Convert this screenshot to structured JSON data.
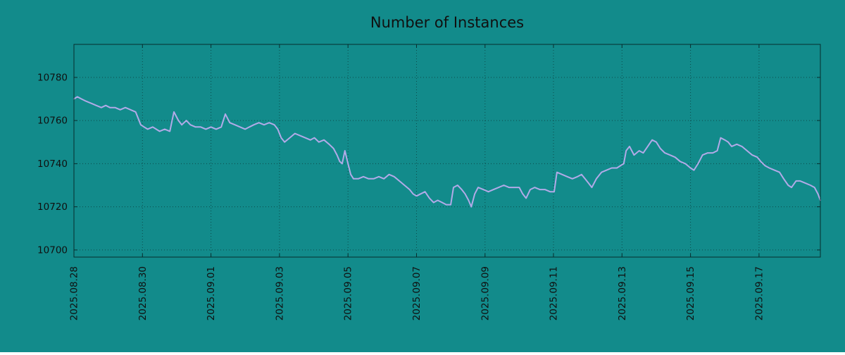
{
  "colors": {
    "background": "#128b8b",
    "line": "#b2aae8",
    "grid": "#0c4a4a",
    "border": "#072e2e",
    "text": "#101010"
  },
  "chart_data": {
    "type": "line",
    "title": "Number of Instances",
    "legend": "none",
    "grid": "dotted",
    "x_axis": {
      "range_days": [
        0,
        21.79
      ],
      "ticks": [
        {
          "label": "2025.08.28",
          "day": 0
        },
        {
          "label": "2025.08.30",
          "day": 2
        },
        {
          "label": "2025.09.01",
          "day": 4
        },
        {
          "label": "2025.09.03",
          "day": 6
        },
        {
          "label": "2025.09.05",
          "day": 8
        },
        {
          "label": "2025.09.07",
          "day": 10
        },
        {
          "label": "2025.09.09",
          "day": 12
        },
        {
          "label": "2025.09.11",
          "day": 14
        },
        {
          "label": "2025.09.13",
          "day": 16
        },
        {
          "label": "2025.09.15",
          "day": 18
        },
        {
          "label": "2025.09.17",
          "day": 20
        }
      ]
    },
    "y_axis": {
      "range": [
        10696.7,
        10795.3
      ],
      "ticks": [
        10700,
        10720,
        10740,
        10760,
        10780
      ]
    },
    "series": [
      {
        "name": "instances",
        "color": "#b2aae8",
        "points": [
          [
            0,
            10770
          ],
          [
            0.1,
            10771
          ],
          [
            0.22,
            10770
          ],
          [
            0.35,
            10769
          ],
          [
            0.5,
            10768
          ],
          [
            0.65,
            10767
          ],
          [
            0.8,
            10766
          ],
          [
            0.93,
            10767
          ],
          [
            1.05,
            10766
          ],
          [
            1.2,
            10766
          ],
          [
            1.35,
            10765
          ],
          [
            1.5,
            10766
          ],
          [
            1.65,
            10765
          ],
          [
            1.8,
            10764
          ],
          [
            1.95,
            10758
          ],
          [
            2.05,
            10757
          ],
          [
            2.15,
            10756
          ],
          [
            2.3,
            10757
          ],
          [
            2.4,
            10756
          ],
          [
            2.5,
            10755
          ],
          [
            2.65,
            10756
          ],
          [
            2.8,
            10755
          ],
          [
            2.92,
            10764
          ],
          [
            3.05,
            10760
          ],
          [
            3.15,
            10758
          ],
          [
            3.28,
            10760
          ],
          [
            3.4,
            10758
          ],
          [
            3.55,
            10757
          ],
          [
            3.7,
            10757
          ],
          [
            3.85,
            10756
          ],
          [
            4.0,
            10757
          ],
          [
            4.15,
            10756
          ],
          [
            4.3,
            10757
          ],
          [
            4.42,
            10763
          ],
          [
            4.55,
            10759
          ],
          [
            4.7,
            10758
          ],
          [
            4.85,
            10757
          ],
          [
            5.0,
            10756
          ],
          [
            5.12,
            10757
          ],
          [
            5.25,
            10758
          ],
          [
            5.4,
            10759
          ],
          [
            5.55,
            10758
          ],
          [
            5.7,
            10759
          ],
          [
            5.85,
            10758
          ],
          [
            5.95,
            10756
          ],
          [
            6.05,
            10752
          ],
          [
            6.15,
            10750
          ],
          [
            6.3,
            10752
          ],
          [
            6.45,
            10754
          ],
          [
            6.6,
            10753
          ],
          [
            6.75,
            10752
          ],
          [
            6.9,
            10751
          ],
          [
            7.02,
            10752
          ],
          [
            7.15,
            10750
          ],
          [
            7.3,
            10751
          ],
          [
            7.45,
            10749
          ],
          [
            7.58,
            10747
          ],
          [
            7.68,
            10744
          ],
          [
            7.76,
            10741
          ],
          [
            7.83,
            10740
          ],
          [
            7.91,
            10746
          ],
          [
            8.0,
            10740
          ],
          [
            8.08,
            10735
          ],
          [
            8.16,
            10733
          ],
          [
            8.3,
            10733
          ],
          [
            8.45,
            10734
          ],
          [
            8.6,
            10733
          ],
          [
            8.75,
            10733
          ],
          [
            8.9,
            10734
          ],
          [
            9.05,
            10733
          ],
          [
            9.2,
            10735
          ],
          [
            9.35,
            10734
          ],
          [
            9.5,
            10732
          ],
          [
            9.65,
            10730
          ],
          [
            9.8,
            10728
          ],
          [
            9.9,
            10726
          ],
          [
            10.0,
            10725
          ],
          [
            10.12,
            10726
          ],
          [
            10.25,
            10727
          ],
          [
            10.38,
            10724
          ],
          [
            10.5,
            10722
          ],
          [
            10.62,
            10723
          ],
          [
            10.75,
            10722
          ],
          [
            10.87,
            10721
          ],
          [
            11.0,
            10721
          ],
          [
            11.08,
            10729
          ],
          [
            11.2,
            10730
          ],
          [
            11.32,
            10728
          ],
          [
            11.42,
            10726
          ],
          [
            11.52,
            10723
          ],
          [
            11.6,
            10720
          ],
          [
            11.7,
            10726
          ],
          [
            11.8,
            10729
          ],
          [
            11.95,
            10728
          ],
          [
            12.1,
            10727
          ],
          [
            12.25,
            10728
          ],
          [
            12.4,
            10729
          ],
          [
            12.55,
            10730
          ],
          [
            12.7,
            10729
          ],
          [
            12.85,
            10729
          ],
          [
            13.0,
            10729
          ],
          [
            13.1,
            10726
          ],
          [
            13.2,
            10724
          ],
          [
            13.32,
            10728
          ],
          [
            13.45,
            10729
          ],
          [
            13.6,
            10728
          ],
          [
            13.75,
            10728
          ],
          [
            13.9,
            10727
          ],
          [
            14.02,
            10727
          ],
          [
            14.1,
            10736
          ],
          [
            14.25,
            10735
          ],
          [
            14.4,
            10734
          ],
          [
            14.55,
            10733
          ],
          [
            14.7,
            10734
          ],
          [
            14.82,
            10735
          ],
          [
            14.92,
            10733
          ],
          [
            15.02,
            10731
          ],
          [
            15.12,
            10729
          ],
          [
            15.25,
            10733
          ],
          [
            15.4,
            10736
          ],
          [
            15.55,
            10737
          ],
          [
            15.7,
            10738
          ],
          [
            15.85,
            10738
          ],
          [
            15.95,
            10739
          ],
          [
            16.05,
            10740
          ],
          [
            16.12,
            10746
          ],
          [
            16.22,
            10748
          ],
          [
            16.35,
            10744
          ],
          [
            16.5,
            10746
          ],
          [
            16.62,
            10745
          ],
          [
            16.75,
            10748
          ],
          [
            16.88,
            10751
          ],
          [
            17.0,
            10750
          ],
          [
            17.12,
            10747
          ],
          [
            17.25,
            10745
          ],
          [
            17.4,
            10744
          ],
          [
            17.55,
            10743
          ],
          [
            17.7,
            10741
          ],
          [
            17.85,
            10740
          ],
          [
            18.0,
            10738
          ],
          [
            18.1,
            10737
          ],
          [
            18.22,
            10740
          ],
          [
            18.35,
            10744
          ],
          [
            18.5,
            10745
          ],
          [
            18.65,
            10745
          ],
          [
            18.78,
            10746
          ],
          [
            18.88,
            10752
          ],
          [
            19.0,
            10751
          ],
          [
            19.1,
            10750
          ],
          [
            19.2,
            10748
          ],
          [
            19.35,
            10749
          ],
          [
            19.5,
            10748
          ],
          [
            19.65,
            10746
          ],
          [
            19.8,
            10744
          ],
          [
            19.95,
            10743
          ],
          [
            20.05,
            10741
          ],
          [
            20.18,
            10739
          ],
          [
            20.3,
            10738
          ],
          [
            20.45,
            10737
          ],
          [
            20.6,
            10736
          ],
          [
            20.72,
            10733
          ],
          [
            20.85,
            10730
          ],
          [
            20.95,
            10729
          ],
          [
            21.08,
            10732
          ],
          [
            21.2,
            10732
          ],
          [
            21.35,
            10731
          ],
          [
            21.5,
            10730
          ],
          [
            21.62,
            10729
          ],
          [
            21.72,
            10726
          ],
          [
            21.79,
            10723
          ]
        ]
      }
    ]
  }
}
